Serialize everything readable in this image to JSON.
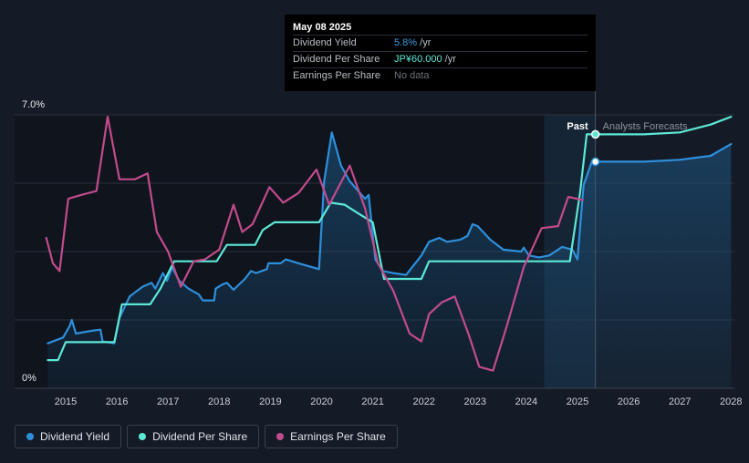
{
  "chart_data": {
    "type": "line",
    "y_axis": {
      "top_label": "7.0%",
      "bottom_label": "0%",
      "ylim": [
        0,
        7.0
      ]
    },
    "x_ticks": [
      "2015",
      "2016",
      "2017",
      "2018",
      "2019",
      "2020",
      "2021",
      "2022",
      "2023",
      "2024",
      "2025",
      "2026",
      "2027",
      "2028"
    ],
    "x_range": [
      2014.5,
      2028.0
    ],
    "regions": {
      "past_label": "Past",
      "forecast_label": "Analysts Forecasts",
      "divider_x": 2025.35,
      "past_highlight_start": 2024.35
    },
    "grid": true,
    "series": [
      {
        "name": "Dividend Yield",
        "color": "#2d8fdc",
        "area": true,
        "points": [
          [
            2014.65,
            1.15
          ],
          [
            2014.95,
            1.3
          ],
          [
            2015.08,
            1.6
          ],
          [
            2015.12,
            1.75
          ],
          [
            2015.2,
            1.4
          ],
          [
            2015.5,
            1.47
          ],
          [
            2015.68,
            1.5
          ],
          [
            2015.72,
            1.2
          ],
          [
            2015.95,
            1.15
          ],
          [
            2016.05,
            1.8
          ],
          [
            2016.25,
            2.35
          ],
          [
            2016.5,
            2.6
          ],
          [
            2016.68,
            2.7
          ],
          [
            2016.75,
            2.55
          ],
          [
            2016.9,
            2.95
          ],
          [
            2016.98,
            2.75
          ],
          [
            2017.08,
            3.1
          ],
          [
            2017.22,
            2.75
          ],
          [
            2017.4,
            2.55
          ],
          [
            2017.6,
            2.4
          ],
          [
            2017.68,
            2.25
          ],
          [
            2017.9,
            2.25
          ],
          [
            2017.93,
            2.55
          ],
          [
            2018.05,
            2.65
          ],
          [
            2018.15,
            2.7
          ],
          [
            2018.28,
            2.52
          ],
          [
            2018.5,
            2.8
          ],
          [
            2018.62,
            3.0
          ],
          [
            2018.72,
            2.95
          ],
          [
            2018.93,
            3.05
          ],
          [
            2018.96,
            3.2
          ],
          [
            2019.2,
            3.2
          ],
          [
            2019.3,
            3.3
          ],
          [
            2019.55,
            3.2
          ],
          [
            2019.95,
            3.05
          ],
          [
            2020.05,
            5.3
          ],
          [
            2020.2,
            6.55
          ],
          [
            2020.38,
            5.7
          ],
          [
            2020.55,
            5.3
          ],
          [
            2020.85,
            4.85
          ],
          [
            2020.92,
            4.95
          ],
          [
            2021.05,
            3.3
          ],
          [
            2021.2,
            3.0
          ],
          [
            2021.4,
            2.95
          ],
          [
            2021.65,
            2.9
          ],
          [
            2021.95,
            3.4
          ],
          [
            2022.1,
            3.75
          ],
          [
            2022.3,
            3.85
          ],
          [
            2022.45,
            3.75
          ],
          [
            2022.7,
            3.8
          ],
          [
            2022.85,
            3.9
          ],
          [
            2022.95,
            4.2
          ],
          [
            2023.05,
            4.15
          ],
          [
            2023.3,
            3.8
          ],
          [
            2023.55,
            3.55
          ],
          [
            2023.9,
            3.5
          ],
          [
            2023.95,
            3.6
          ],
          [
            2024.05,
            3.4
          ],
          [
            2024.25,
            3.35
          ],
          [
            2024.45,
            3.4
          ],
          [
            2024.7,
            3.62
          ],
          [
            2024.9,
            3.55
          ],
          [
            2025.0,
            3.3
          ],
          [
            2025.12,
            5.2
          ],
          [
            2025.28,
            5.8
          ],
          [
            2026.3,
            5.8
          ],
          [
            2027.0,
            5.85
          ],
          [
            2027.6,
            5.95
          ],
          [
            2028.0,
            6.25
          ]
        ]
      },
      {
        "name": "Dividend Per Share",
        "color": "#5de8d6",
        "area": false,
        "points": [
          [
            2014.65,
            0.72
          ],
          [
            2014.85,
            0.72
          ],
          [
            2015.0,
            1.18
          ],
          [
            2015.95,
            1.18
          ],
          [
            2016.1,
            2.15
          ],
          [
            2016.65,
            2.15
          ],
          [
            2016.85,
            2.55
          ],
          [
            2017.12,
            3.25
          ],
          [
            2017.95,
            3.25
          ],
          [
            2018.15,
            3.67
          ],
          [
            2018.7,
            3.67
          ],
          [
            2018.85,
            4.05
          ],
          [
            2019.08,
            4.25
          ],
          [
            2019.95,
            4.25
          ],
          [
            2020.18,
            4.75
          ],
          [
            2020.45,
            4.7
          ],
          [
            2020.75,
            4.45
          ],
          [
            2021.0,
            4.25
          ],
          [
            2021.22,
            2.8
          ],
          [
            2021.95,
            2.8
          ],
          [
            2022.1,
            3.25
          ],
          [
            2024.85,
            3.25
          ],
          [
            2025.05,
            5.0
          ],
          [
            2025.18,
            6.5
          ],
          [
            2025.35,
            6.5
          ],
          [
            2026.3,
            6.5
          ],
          [
            2027.0,
            6.55
          ],
          [
            2027.6,
            6.75
          ],
          [
            2028.0,
            6.95
          ]
        ]
      },
      {
        "name": "Earnings Per Share",
        "color": "#c24b8d",
        "area": false,
        "points": [
          [
            2014.62,
            3.85
          ],
          [
            2014.75,
            3.2
          ],
          [
            2014.88,
            3.0
          ],
          [
            2015.05,
            4.85
          ],
          [
            2015.3,
            4.95
          ],
          [
            2015.6,
            5.05
          ],
          [
            2015.82,
            6.95
          ],
          [
            2016.05,
            5.35
          ],
          [
            2016.35,
            5.35
          ],
          [
            2016.6,
            5.5
          ],
          [
            2016.78,
            4.0
          ],
          [
            2017.0,
            3.5
          ],
          [
            2017.25,
            2.6
          ],
          [
            2017.5,
            3.25
          ],
          [
            2017.72,
            3.3
          ],
          [
            2018.0,
            3.55
          ],
          [
            2018.28,
            4.7
          ],
          [
            2018.45,
            4.0
          ],
          [
            2018.65,
            4.2
          ],
          [
            2018.98,
            5.15
          ],
          [
            2019.25,
            4.75
          ],
          [
            2019.55,
            5.0
          ],
          [
            2019.9,
            5.6
          ],
          [
            2020.15,
            4.7
          ],
          [
            2020.55,
            5.7
          ],
          [
            2020.85,
            4.6
          ],
          [
            2021.1,
            3.2
          ],
          [
            2021.4,
            2.5
          ],
          [
            2021.72,
            1.4
          ],
          [
            2021.95,
            1.2
          ],
          [
            2022.1,
            1.9
          ],
          [
            2022.35,
            2.2
          ],
          [
            2022.6,
            2.35
          ],
          [
            2022.88,
            1.35
          ],
          [
            2023.08,
            0.55
          ],
          [
            2023.35,
            0.45
          ],
          [
            2023.62,
            1.6
          ],
          [
            2023.95,
            3.1
          ],
          [
            2024.3,
            4.1
          ],
          [
            2024.62,
            4.15
          ],
          [
            2024.82,
            4.9
          ],
          [
            2025.1,
            4.82
          ]
        ]
      }
    ],
    "markers": [
      {
        "series": "Dividend Per Share",
        "x": 2025.35,
        "y": 6.5
      },
      {
        "series": "Dividend Yield",
        "x": 2025.35,
        "y": 5.8
      }
    ]
  },
  "tooltip": {
    "date": "May 08 2025",
    "rows": [
      {
        "label": "Dividend Yield",
        "value": "5.8%",
        "unit": " /yr"
      },
      {
        "label": "Dividend Per Share",
        "value": "JP¥60.000",
        "unit": " /yr"
      },
      {
        "label": "Earnings Per Share",
        "value": "No data",
        "unit": ""
      }
    ]
  },
  "legend": [
    {
      "label": "Dividend Yield",
      "color": "#2d8fdc"
    },
    {
      "label": "Dividend Per Share",
      "color": "#5de8d6"
    },
    {
      "label": "Earnings Per Share",
      "color": "#c24b8d"
    }
  ]
}
